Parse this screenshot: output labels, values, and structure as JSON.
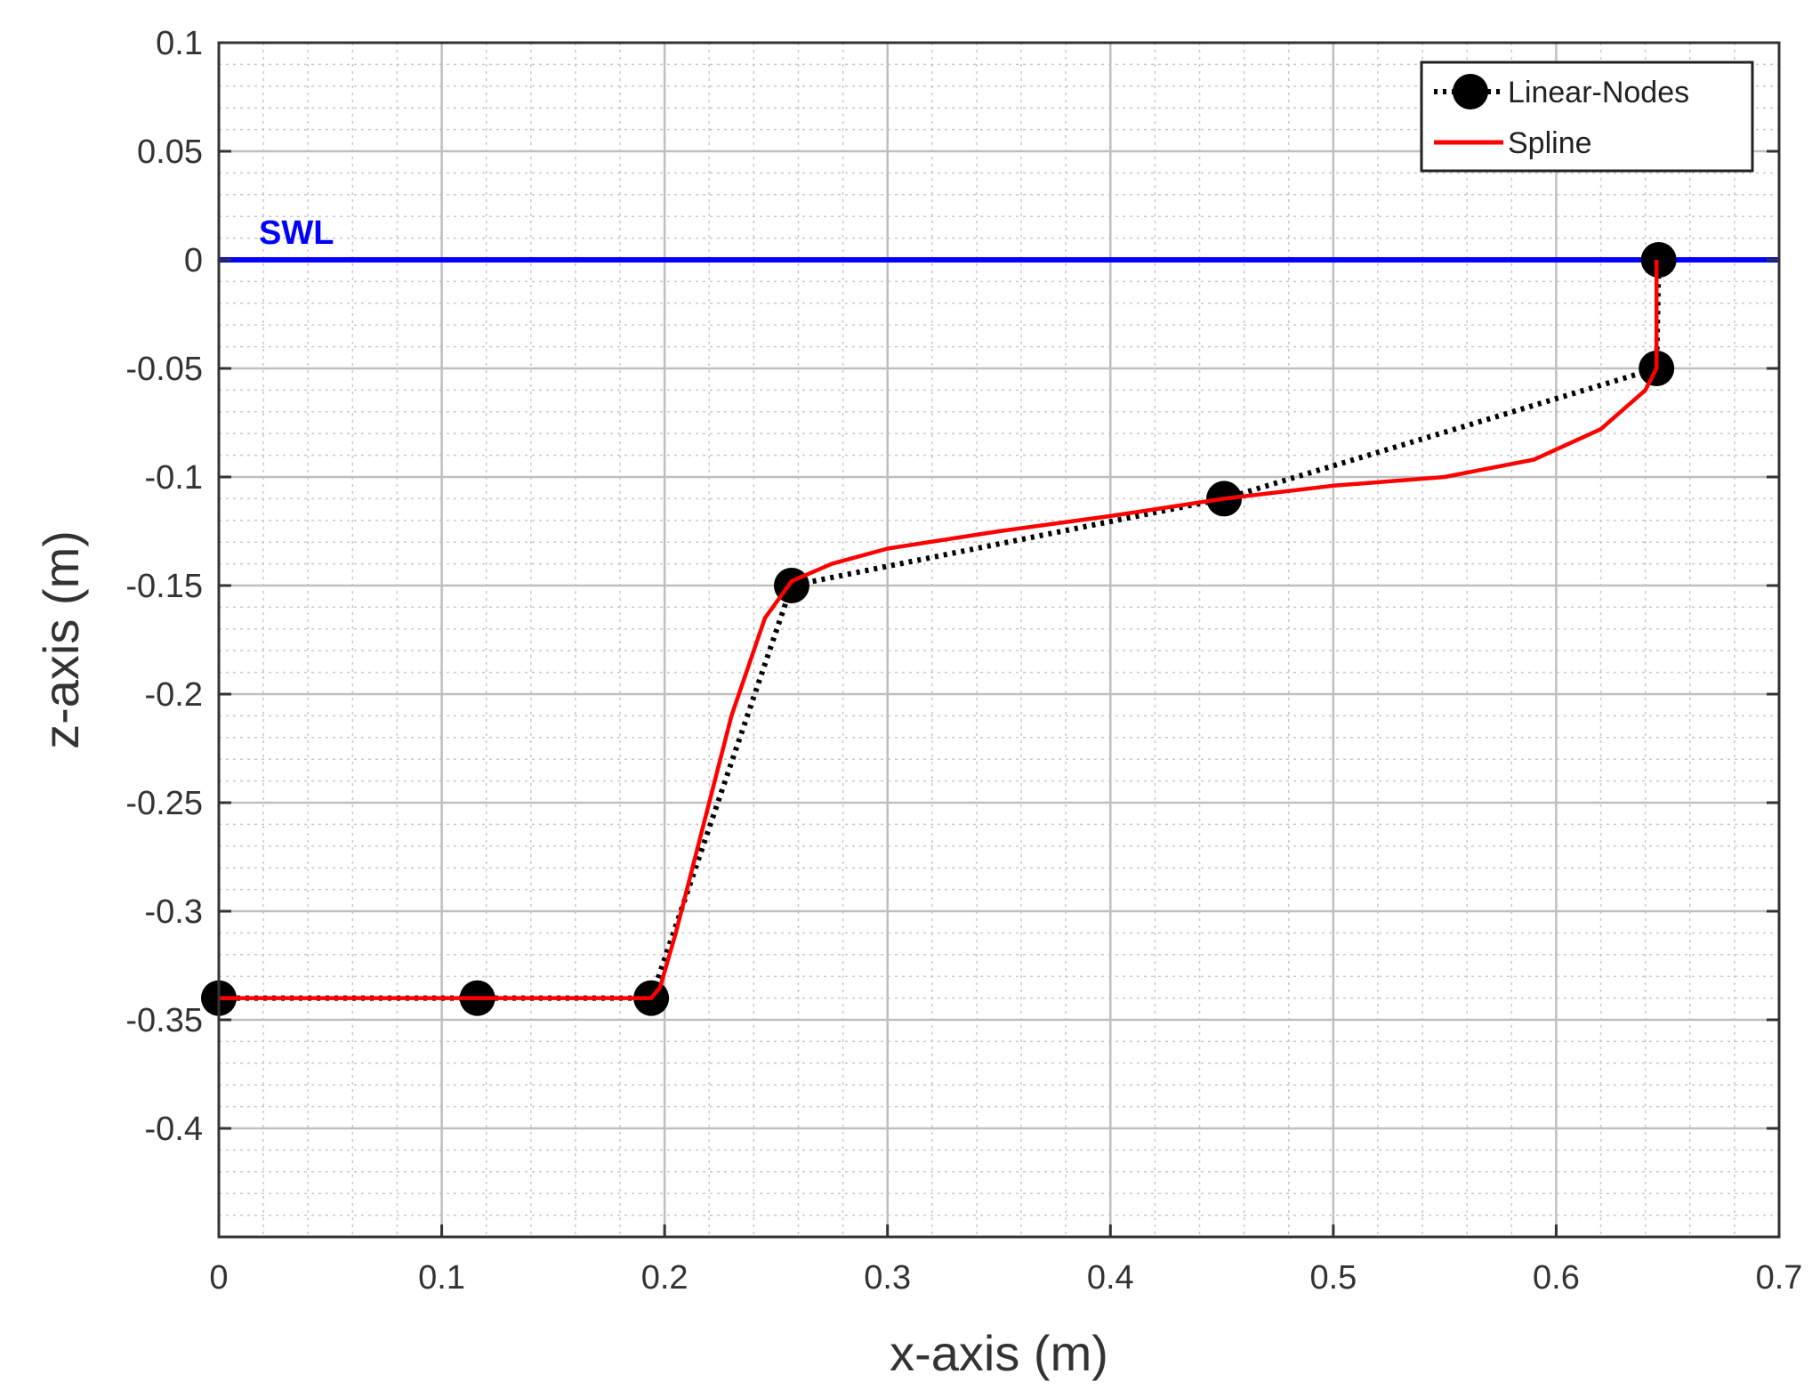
{
  "chart_data": {
    "type": "line",
    "title": "",
    "xlabel": "x-axis (m)",
    "ylabel": "z-axis (m)",
    "xlim": [
      0,
      0.7
    ],
    "ylim": [
      -0.45,
      0.1
    ],
    "x_ticks": [
      0,
      0.1,
      0.2,
      0.3,
      0.4,
      0.5,
      0.6,
      0.7
    ],
    "x_tick_labels": [
      "0",
      "0.1",
      "0.2",
      "0.3",
      "0.4",
      "0.5",
      "0.6",
      "0.7"
    ],
    "y_ticks": [
      0.1,
      0.05,
      0,
      -0.05,
      -0.1,
      -0.15,
      -0.2,
      -0.25,
      -0.3,
      -0.35,
      -0.4
    ],
    "y_tick_labels": [
      "0.1",
      "0.05",
      "0",
      "-0.05",
      "-0.1",
      "-0.15",
      "-0.2",
      "-0.25",
      "-0.3",
      "-0.35",
      "-0.4"
    ],
    "grid": true,
    "minor_grid": true,
    "legend_position": "top-right",
    "series": [
      {
        "name": "Linear-Nodes",
        "color": "#000000",
        "line_style": "dotted",
        "marker": "filled-circle",
        "x": [
          0,
          0.116,
          0.194,
          0.257,
          0.451,
          0.645,
          0.646
        ],
        "y": [
          -0.34,
          -0.34,
          -0.34,
          -0.15,
          -0.11,
          -0.05,
          0
        ]
      },
      {
        "name": "Spline",
        "color": "#ff0000",
        "line_style": "solid",
        "marker": "none",
        "x": [
          0,
          0.116,
          0.194,
          0.198,
          0.205,
          0.215,
          0.23,
          0.245,
          0.257,
          0.275,
          0.3,
          0.35,
          0.4,
          0.451,
          0.5,
          0.55,
          0.59,
          0.62,
          0.64,
          0.645,
          0.645
        ],
        "y": [
          -0.34,
          -0.34,
          -0.34,
          -0.335,
          -0.31,
          -0.27,
          -0.21,
          -0.165,
          -0.148,
          -0.14,
          -0.133,
          -0.125,
          -0.118,
          -0.11,
          -0.104,
          -0.1,
          -0.092,
          -0.078,
          -0.06,
          -0.05,
          0
        ]
      }
    ],
    "reference_lines": [
      {
        "label": "SWL",
        "y": 0,
        "color": "#0000ff"
      }
    ]
  }
}
